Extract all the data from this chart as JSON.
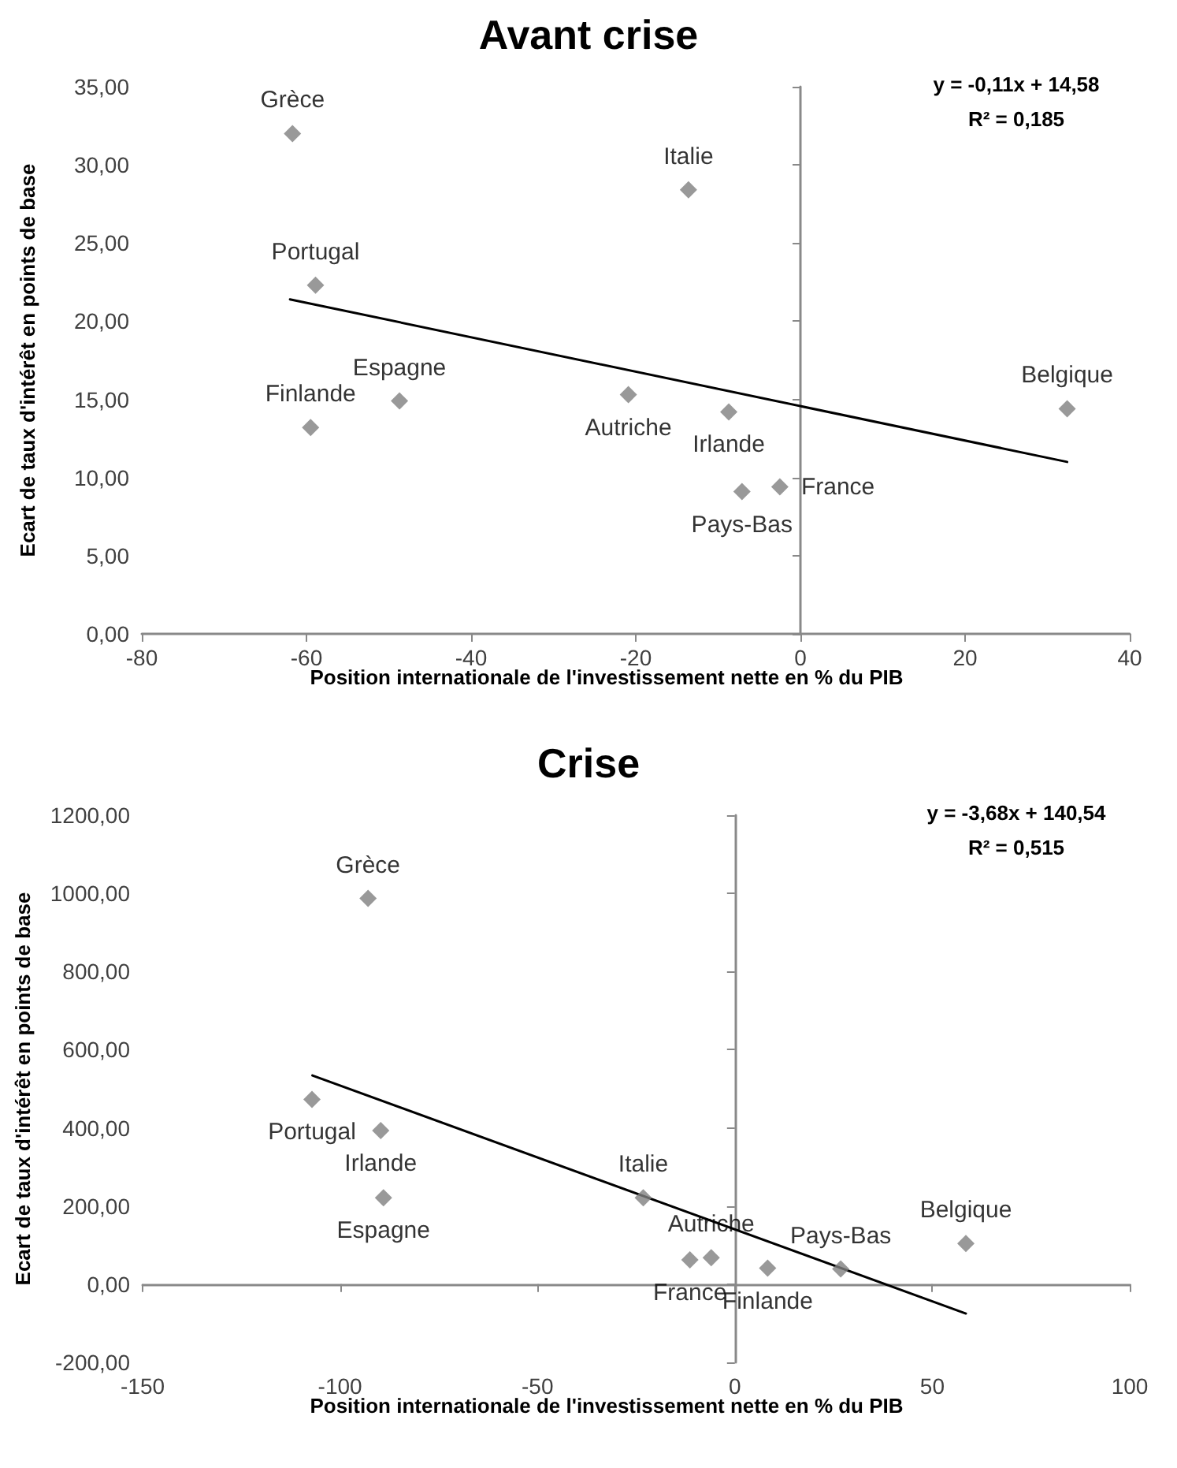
{
  "chart_data": [
    {
      "type": "scatter",
      "title": "Avant crise",
      "xlabel": "Position internationale de l'investissement nette en % du PIB",
      "ylabel": "Ecart de taux d'intérêt en points de base",
      "annotations": [
        "y = -0,11x + 14,58",
        "R² = 0,185"
      ],
      "xlim": [
        -80,
        40
      ],
      "xticks": [
        -80,
        -60,
        -40,
        -20,
        0,
        20,
        40
      ],
      "ylim": [
        0,
        35
      ],
      "yticks": [
        {
          "value": 0,
          "label": "0,00"
        },
        {
          "value": 5,
          "label": "5,00"
        },
        {
          "value": 10,
          "label": "10,00"
        },
        {
          "value": 15,
          "label": "15,00"
        },
        {
          "value": 20,
          "label": "20,00"
        },
        {
          "value": 25,
          "label": "25,00"
        },
        {
          "value": 30,
          "label": "30,00"
        },
        {
          "value": 35,
          "label": "35,00"
        }
      ],
      "series": [
        {
          "type": "scatter",
          "color": "#7f7f7f",
          "marker": "diamond",
          "x": [
            -61.7,
            -13.6,
            -58.9,
            -59.5,
            -48.7,
            -20.9,
            -8.7,
            -7.1,
            -2.5,
            32.4
          ],
          "values": [
            32.0,
            28.4,
            22.3,
            13.2,
            14.9,
            15.3,
            14.2,
            9.1,
            9.4,
            14.4
          ],
          "value_labels": [
            "Grèce",
            "Italie",
            "Portugal",
            "Finlande",
            "Espagne",
            "Autriche",
            "Irlande",
            "Pays-Bas",
            "France",
            "Belgique"
          ]
        },
        {
          "type": "line",
          "color": "#000000",
          "marker": "none",
          "line_style": "solid",
          "x": [
            -62,
            32.4
          ],
          "values": [
            21.4,
            11.0
          ]
        }
      ]
    },
    {
      "type": "scatter",
      "title": "Crise",
      "xlabel": "Position internationale de l'investissement nette en % du PIB",
      "ylabel": "Ecart de taux d'intérêt en points de base",
      "annotations": [
        "y = -3,68x + 140,54",
        "R² = 0,515"
      ],
      "xlim": [
        -150,
        100
      ],
      "xticks": [
        -150,
        -100,
        -50,
        0,
        50,
        100
      ],
      "ylim": [
        -200,
        1200
      ],
      "yticks": [
        {
          "value": -200,
          "label": "-200,00"
        },
        {
          "value": 0,
          "label": "0,00"
        },
        {
          "value": 200,
          "label": "200,00"
        },
        {
          "value": 400,
          "label": "400,00"
        },
        {
          "value": 600,
          "label": "600,00"
        },
        {
          "value": 800,
          "label": "800,00"
        },
        {
          "value": 1000,
          "label": "1000,00"
        },
        {
          "value": 1200,
          "label": "1200,00"
        }
      ],
      "series": [
        {
          "type": "scatter",
          "color": "#7f7f7f",
          "marker": "diamond",
          "x": [
            -92.9,
            -107.1,
            -89.7,
            -89.0,
            -23.2,
            -11.4,
            -6.0,
            8.3,
            26.8,
            58.5
          ],
          "values": [
            987,
            473,
            393,
            221,
            221,
            62,
            68,
            41,
            39,
            104
          ],
          "value_labels": [
            "Grèce",
            "Portugal",
            "Irlande",
            "Espagne",
            "Italie",
            "France",
            "Autriche",
            "Finlande",
            "Pays-Bas",
            "Belgique"
          ]
        },
        {
          "type": "line",
          "color": "#000000",
          "marker": "none",
          "line_style": "solid",
          "x": [
            -107,
            58.5
          ],
          "values": [
            534,
            -75
          ]
        }
      ]
    }
  ]
}
